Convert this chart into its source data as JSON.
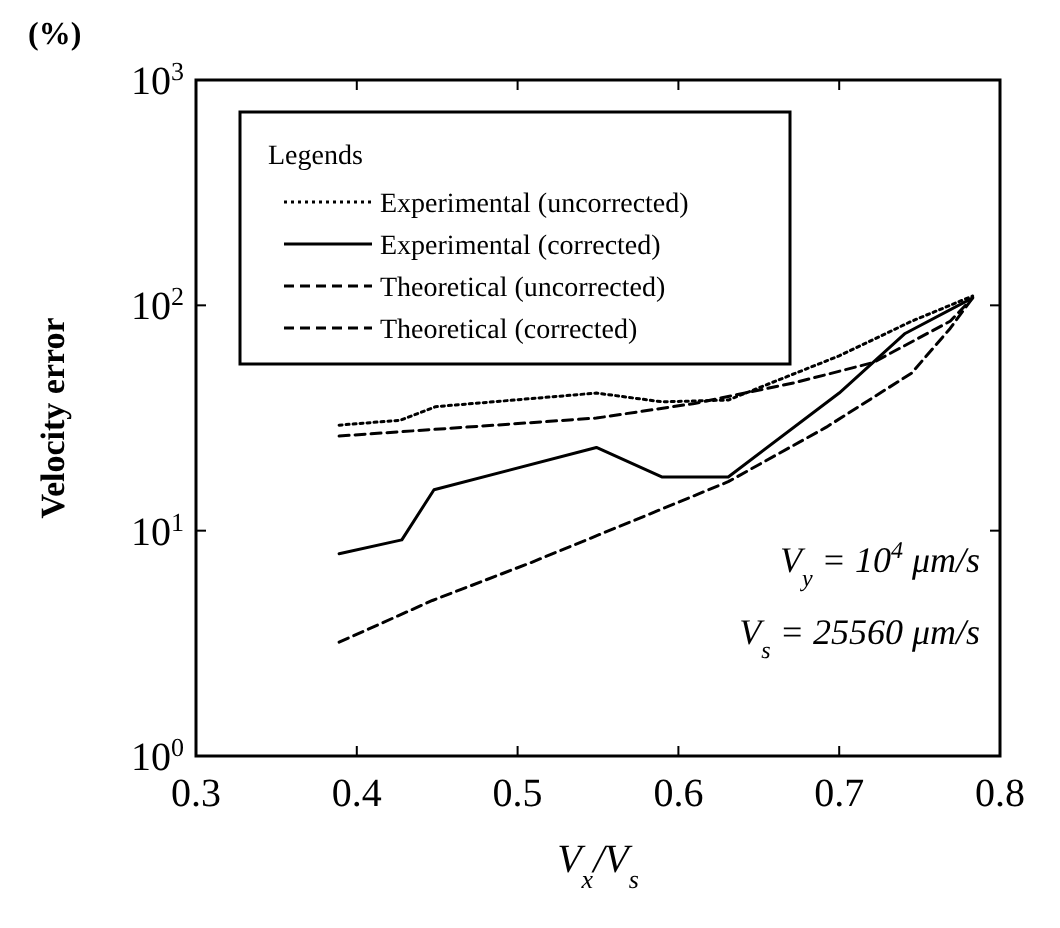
{
  "chart_data": {
    "type": "line",
    "xlabel": "V$_{x}$/V$_{s}$",
    "ylabel": "Velocity error",
    "legend_title": "Legends",
    "legend": "top left",
    "log": "y",
    "grid": false,
    "xlim": [
      0.3,
      0.8
    ],
    "xticks": [
      0.3,
      0.4,
      0.5,
      0.6,
      0.7,
      0.8
    ],
    "ylim": [
      1,
      1000
    ],
    "yticks": [
      {
        "value": 1,
        "label": "10$^{0}$"
      },
      {
        "value": 10,
        "label": "10$^{1}$"
      },
      {
        "value": 100,
        "label": "10$^{2}$"
      },
      {
        "value": 1000,
        "label": "10$^{3}$"
      }
    ],
    "annotations": [
      "(%)",
      "V$_{y}$ = 10$^{4}$ μm/s",
      "V$_{s}$ = 25560 μm/s"
    ],
    "series": [
      {
        "name": "Experimental (uncorrected)",
        "color": "#000000",
        "line_style": "dotted",
        "x": [
          0.389,
          0.427,
          0.449,
          0.549,
          0.59,
          0.631,
          0.7,
          0.745,
          0.783
        ],
        "values": [
          29.4,
          30.9,
          35.5,
          40.8,
          37.3,
          38,
          59.7,
          85,
          110
        ]
      },
      {
        "name": "Experimental (corrected)",
        "color": "#000000",
        "line_style": "solid",
        "x": [
          0.389,
          0.428,
          0.448,
          0.549,
          0.59,
          0.631,
          0.7,
          0.741,
          0.783
        ],
        "values": [
          7.9,
          9.1,
          15.2,
          23.4,
          17.3,
          17.3,
          40.8,
          75,
          108
        ]
      },
      {
        "name": "Theoretical (uncorrected)",
        "color": "#000000",
        "line_style": "dashed",
        "x": [
          0.389,
          0.468,
          0.549,
          0.61,
          0.672,
          0.721,
          0.769,
          0.783
        ],
        "values": [
          26.3,
          28.8,
          31.6,
          36.7,
          45.3,
          55.7,
          85,
          108
        ]
      },
      {
        "name": "Theoretical (corrected)",
        "color": "#000000",
        "line_style": "dashed",
        "x": [
          0.389,
          0.447,
          0.508,
          0.59,
          0.631,
          0.692,
          0.745,
          0.769,
          0.783
        ],
        "values": [
          3.2,
          4.9,
          7.2,
          12.5,
          16.5,
          28.8,
          50,
          79,
          108
        ]
      }
    ]
  }
}
